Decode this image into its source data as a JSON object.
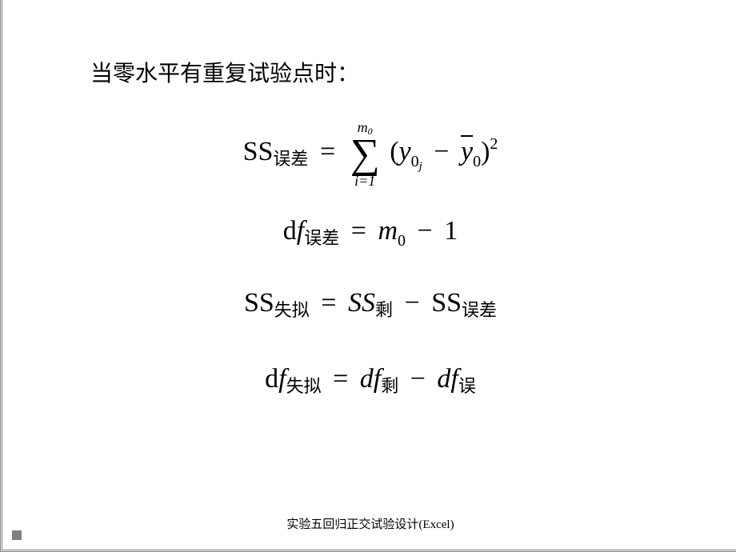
{
  "heading": "当零水平有重复试验点时：",
  "footer": "实验五回归正交试验设计(Excel)",
  "eq1": {
    "ss_label": "SS",
    "ss_sub": "误差",
    "equals": "=",
    "sigma_upper_var": "m",
    "sigma_upper_sub": "0",
    "sigma_symbol": "∑",
    "sigma_lower": "i=1",
    "open_paren": "(",
    "y": "y",
    "y_sub_0": "0",
    "y_sub_j": "j",
    "minus": "−",
    "ybar": "y",
    "ybar_sub": "0",
    "close_paren": ")",
    "exponent": "2"
  },
  "eq2": {
    "df_d": "d",
    "df_f": "f",
    "df_sub": "误差",
    "equals": "=",
    "m": "m",
    "m_sub": "0",
    "minus": "−",
    "one": "1"
  },
  "eq3": {
    "ss1": "SS",
    "ss1_sub": "失拟",
    "equals": "=",
    "ss2": "SS",
    "ss2_sub": "剩",
    "minus": "−",
    "ss3": "SS",
    "ss3_sub": "误差"
  },
  "eq4": {
    "df1_d": "d",
    "df1_f": "f",
    "df1_sub": "失拟",
    "equals": "=",
    "df2": "df",
    "df2_sub": "剩",
    "minus": "−",
    "df3": "df",
    "df3_sub": "误"
  },
  "style": {
    "font_math": "Times New Roman",
    "font_cjk": "SimSun",
    "text_color": "#000000",
    "background": "#ffffff",
    "border_color": "#808080",
    "heading_fontsize": 28,
    "math_fontsize": 34,
    "sub_fontsize": 20,
    "cjk_sub_fontsize": 22,
    "sigma_fontsize": 52,
    "footer_fontsize": 15
  }
}
